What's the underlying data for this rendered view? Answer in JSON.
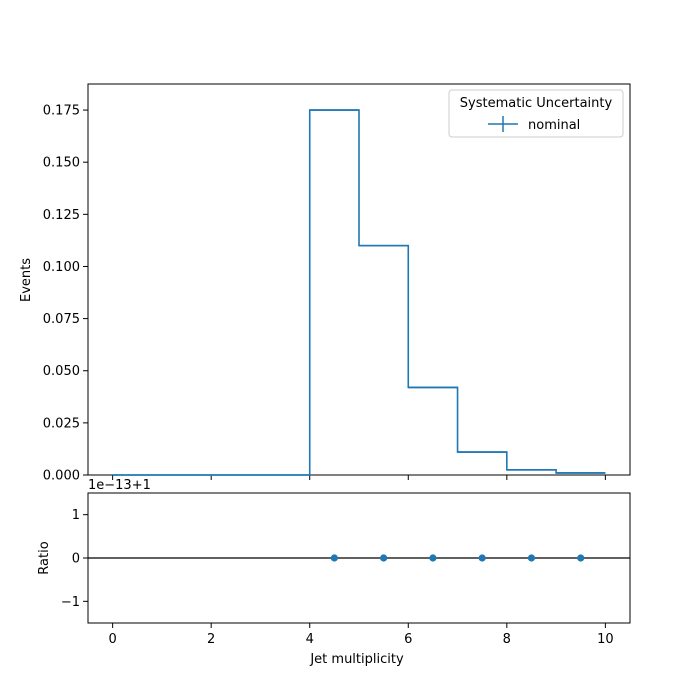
{
  "chart_data": [
    {
      "type": "line",
      "subtype": "step-histogram",
      "ylabel": "Events",
      "xlim": [
        -0.5,
        10.5
      ],
      "ylim": [
        0,
        0.1875
      ],
      "bin_edges": [
        0,
        1,
        2,
        3,
        4,
        5,
        6,
        7,
        8,
        9,
        10
      ],
      "series": [
        {
          "name": "nominal",
          "values": [
            0,
            0,
            0,
            0,
            0.175,
            0.11,
            0.042,
            0.011,
            0.0025,
            0.001
          ]
        }
      ],
      "xticks": [
        0,
        2,
        4,
        6,
        8,
        10
      ],
      "yticks": [
        "0.000",
        "0.025",
        "0.050",
        "0.075",
        "0.100",
        "0.125",
        "0.150",
        "0.175"
      ],
      "ytick_values": [
        0,
        0.025,
        0.05,
        0.075,
        0.1,
        0.125,
        0.15,
        0.175
      ],
      "legend": {
        "title": "Systematic Uncertainty",
        "entries": [
          "nominal"
        ],
        "placement": "top-right"
      },
      "color": "#1f77b4",
      "grid": false
    },
    {
      "type": "scatter",
      "ylabel": "Ratio",
      "xlabel": "Jet multiplicity",
      "offset_text": "1e−13+1",
      "xlim": [
        -0.5,
        10.5
      ],
      "ylim": [
        -1.5,
        1.5
      ],
      "x": [
        4.5,
        5.5,
        6.5,
        7.5,
        8.5,
        9.5
      ],
      "y": [
        0,
        0,
        0,
        0,
        0,
        0
      ],
      "reference_line": 0,
      "xticks": [
        "0",
        "2",
        "4",
        "6",
        "8",
        "10"
      ],
      "xtick_values": [
        0,
        2,
        4,
        6,
        8,
        10
      ],
      "yticks": [
        "−1",
        "0",
        "1"
      ],
      "ytick_values": [
        -1,
        0,
        1
      ],
      "color": "#1f77b4",
      "grid": false
    }
  ]
}
